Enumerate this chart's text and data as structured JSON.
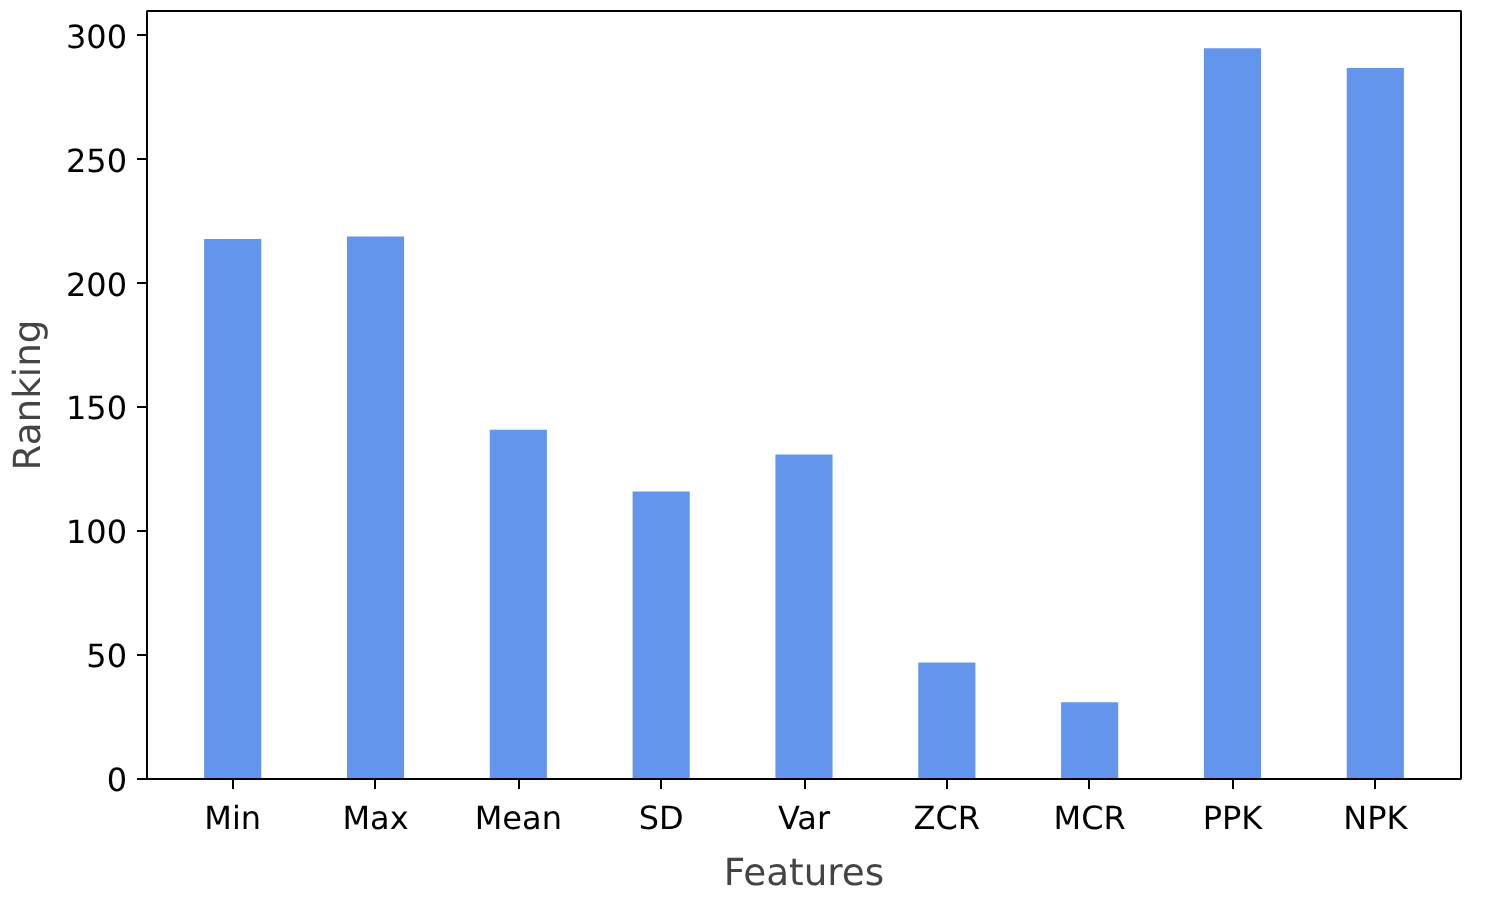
{
  "chart_data": {
    "type": "bar",
    "xlabel": "Features",
    "ylabel": "Ranking",
    "categories": [
      "Min",
      "Max",
      "Mean",
      "SD",
      "Var",
      "ZCR",
      "MCR",
      "PPK",
      "NPK"
    ],
    "values": [
      218,
      219,
      141,
      116,
      131,
      47,
      31,
      295,
      287
    ],
    "color": "#6495ed",
    "ylim": [
      0,
      310
    ],
    "yticks": [
      0,
      50,
      100,
      150,
      200,
      250,
      300
    ],
    "grid": false
  }
}
